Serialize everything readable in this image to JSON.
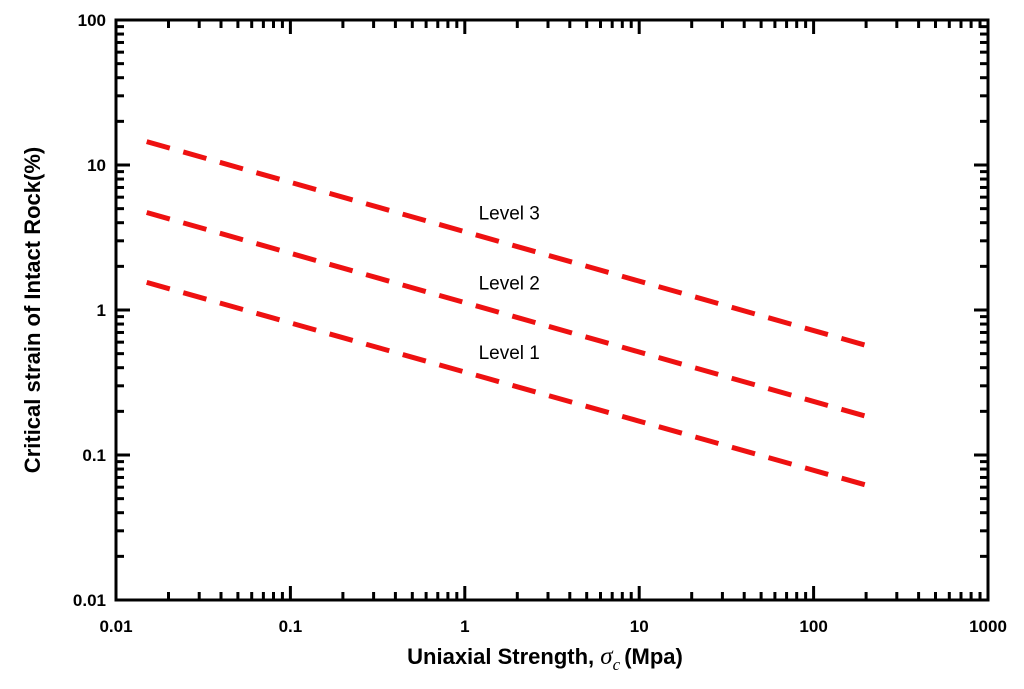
{
  "chart_data": {
    "type": "line",
    "title": "",
    "xlabel": "Uniaxial Strength, ",
    "xlabel_symbol": "σ",
    "xlabel_subscript": "c",
    "xlabel_unit": "(Mpa)",
    "ylabel": "Critical strain of Intact Rock(%)",
    "xscale": "log",
    "yscale": "log",
    "xlim": [
      0.01,
      1000
    ],
    "ylim": [
      0.01,
      100
    ],
    "grid": false,
    "xticks": [
      0.01,
      0.1,
      1,
      10,
      100,
      1000
    ],
    "xtick_labels": [
      "0.01",
      "0.1",
      "1",
      "10",
      "100",
      "1000"
    ],
    "yticks": [
      0.01,
      0.1,
      1,
      10,
      100
    ],
    "ytick_labels": [
      "0.01",
      "0.1",
      "1",
      "10",
      "100"
    ],
    "line_style": "dashed",
    "line_color": "#ee1111",
    "series": [
      {
        "x": [
          0.015,
          200
        ],
        "y": [
          14.5,
          0.57
        ]
      },
      {
        "x": [
          0.015,
          200
        ],
        "y": [
          4.7,
          0.185
        ]
      },
      {
        "x": [
          0.015,
          200
        ],
        "y": [
          1.55,
          0.062
        ]
      }
    ],
    "annotations": [
      {
        "text": "Level 3",
        "x": 1.2,
        "y": 4.2
      },
      {
        "text": "Level 2",
        "x": 1.2,
        "y": 1.38
      },
      {
        "text": "Level 1",
        "x": 1.2,
        "y": 0.46
      }
    ]
  }
}
